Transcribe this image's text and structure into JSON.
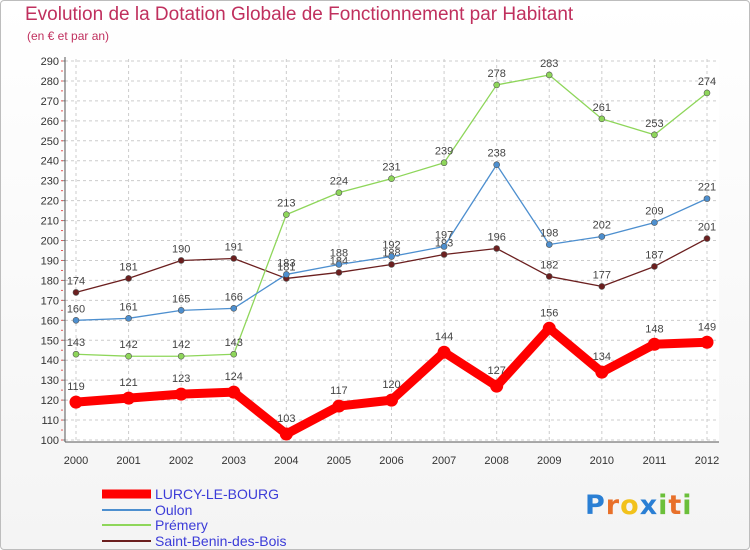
{
  "chart_data": {
    "type": "line",
    "title": "Evolution de la Dotation Globale de Fonctionnement par Habitant",
    "subtitle": "(en € et par an)",
    "x": [
      "2000",
      "2001",
      "2002",
      "2003",
      "2004",
      "2005",
      "2006",
      "2007",
      "2008",
      "2009",
      "2010",
      "2011",
      "2012"
    ],
    "ylim": [
      100,
      290
    ],
    "yticks": [
      100,
      110,
      120,
      130,
      140,
      150,
      160,
      170,
      180,
      190,
      200,
      210,
      220,
      230,
      240,
      250,
      260,
      270,
      280,
      290
    ],
    "series": [
      {
        "name": "LURCY-LE-BOURG",
        "color": "#ff0000",
        "values": [
          119,
          121,
          123,
          124,
          103,
          117,
          120,
          144,
          127,
          156,
          134,
          148,
          149
        ]
      },
      {
        "name": "Oulon",
        "color": "#4d8fcf",
        "values": [
          160,
          161,
          165,
          166,
          183,
          188,
          192,
          197,
          238,
          198,
          202,
          209,
          221
        ]
      },
      {
        "name": "Prémery",
        "color": "#8ed65a",
        "values": [
          143,
          142,
          142,
          143,
          213,
          224,
          231,
          239,
          278,
          283,
          261,
          253,
          274
        ]
      },
      {
        "name": "Saint-Benin-des-Bois",
        "color": "#6b1f1f",
        "values": [
          174,
          181,
          190,
          191,
          181,
          184,
          188,
          193,
          196,
          182,
          177,
          187,
          201
        ]
      }
    ],
    "point_labels": [
      [
        "119",
        "121",
        "123",
        "124",
        "103",
        "117",
        "120",
        "144",
        "127",
        "156",
        "134",
        "148",
        "149"
      ],
      [
        "160",
        "161",
        "165",
        "166",
        "183",
        "188",
        "192",
        "197",
        "238",
        "198",
        "202",
        "209",
        "221"
      ],
      [
        "143",
        "142",
        "142",
        "143",
        "213",
        "224",
        "231",
        "239",
        "278",
        "283",
        "261",
        "253",
        "274"
      ],
      [
        "174",
        "181",
        "190",
        "191",
        "181",
        "184",
        "188",
        "193",
        "196",
        "182",
        "177",
        "187",
        "201"
      ]
    ]
  },
  "logo": {
    "letters": [
      "P",
      "r",
      "o",
      "x",
      "i",
      "t",
      "i"
    ],
    "colors": [
      "#2a7fd4",
      "#e8702a",
      "#f2c21b",
      "#2a7fd4",
      "#6bbf3a",
      "#e8702a",
      "#6bbf3a"
    ]
  }
}
